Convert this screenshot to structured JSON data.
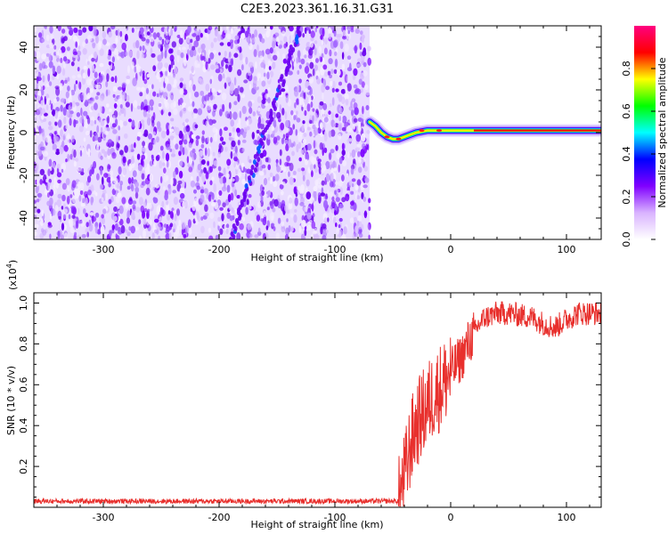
{
  "figure": {
    "title": "C2E3.2023.361.16.31.G31"
  },
  "chart_data": [
    {
      "type": "heatmap",
      "xlabel": "Height of straight line (km)",
      "ylabel": "Frequency (Hz)",
      "xlim": [
        -360,
        130
      ],
      "ylim": [
        -50,
        50
      ],
      "x_ticks": [
        -300,
        -200,
        -100,
        0,
        100
      ],
      "y_ticks": [
        -40,
        -20,
        0,
        20,
        40
      ],
      "noise_region_x": [
        -360,
        -70
      ],
      "diagonal_feature": {
        "x": [
          -190,
          -130
        ],
        "y": [
          -50,
          50
        ]
      },
      "signal_trace": {
        "x": [
          -70,
          -65,
          -60,
          -55,
          -50,
          -45,
          -40,
          -35,
          -30,
          -20,
          -10,
          0,
          10,
          20,
          40,
          60,
          80,
          100,
          130
        ],
        "y": [
          5,
          3,
          0,
          -2,
          -3,
          -3,
          -2,
          -1,
          0,
          1,
          1,
          1,
          1,
          1,
          1,
          1,
          1,
          1,
          1
        ]
      },
      "colorbar": {
        "label": "Normalized spectral amplitude",
        "range": [
          0,
          1
        ],
        "ticks": [
          0.0,
          0.2,
          0.4,
          0.6,
          0.8
        ],
        "colors": [
          "#ffffff",
          "#d9b3ff",
          "#8000ff",
          "#0000ff",
          "#00ffff",
          "#00ff00",
          "#ffff00",
          "#ff0000",
          "#ff0080"
        ]
      },
      "grid": false
    },
    {
      "type": "line",
      "xlabel": "Height of straight line (km)",
      "ylabel": "SNR (10 * v/v)",
      "yscale_label": "(x10",
      "yscale_exp": "4",
      "xlim": [
        -360,
        130
      ],
      "ylim": [
        0,
        1.05
      ],
      "x_ticks": [
        -300,
        -200,
        -100,
        0,
        100
      ],
      "y_ticks": [
        0.2,
        0.4,
        0.6,
        0.8,
        1.0
      ],
      "series": [
        {
          "color": "#e8302d",
          "x": [
            -360,
            -300,
            -200,
            -100,
            -45,
            -42,
            -38,
            -35,
            -30,
            -25,
            -20,
            -15,
            -10,
            -5,
            0,
            5,
            10,
            15,
            20,
            25,
            30,
            40,
            50,
            60,
            70,
            80,
            90,
            100,
            110,
            120,
            130
          ],
          "y": [
            0.03,
            0.03,
            0.03,
            0.03,
            0.03,
            0.1,
            0.2,
            0.3,
            0.4,
            0.45,
            0.5,
            0.55,
            0.58,
            0.62,
            0.66,
            0.7,
            0.74,
            0.8,
            0.85,
            0.9,
            0.93,
            0.95,
            0.95,
            0.94,
            0.93,
            0.9,
            0.88,
            0.92,
            0.95,
            0.95,
            0.95
          ]
        }
      ],
      "grid": false
    }
  ]
}
